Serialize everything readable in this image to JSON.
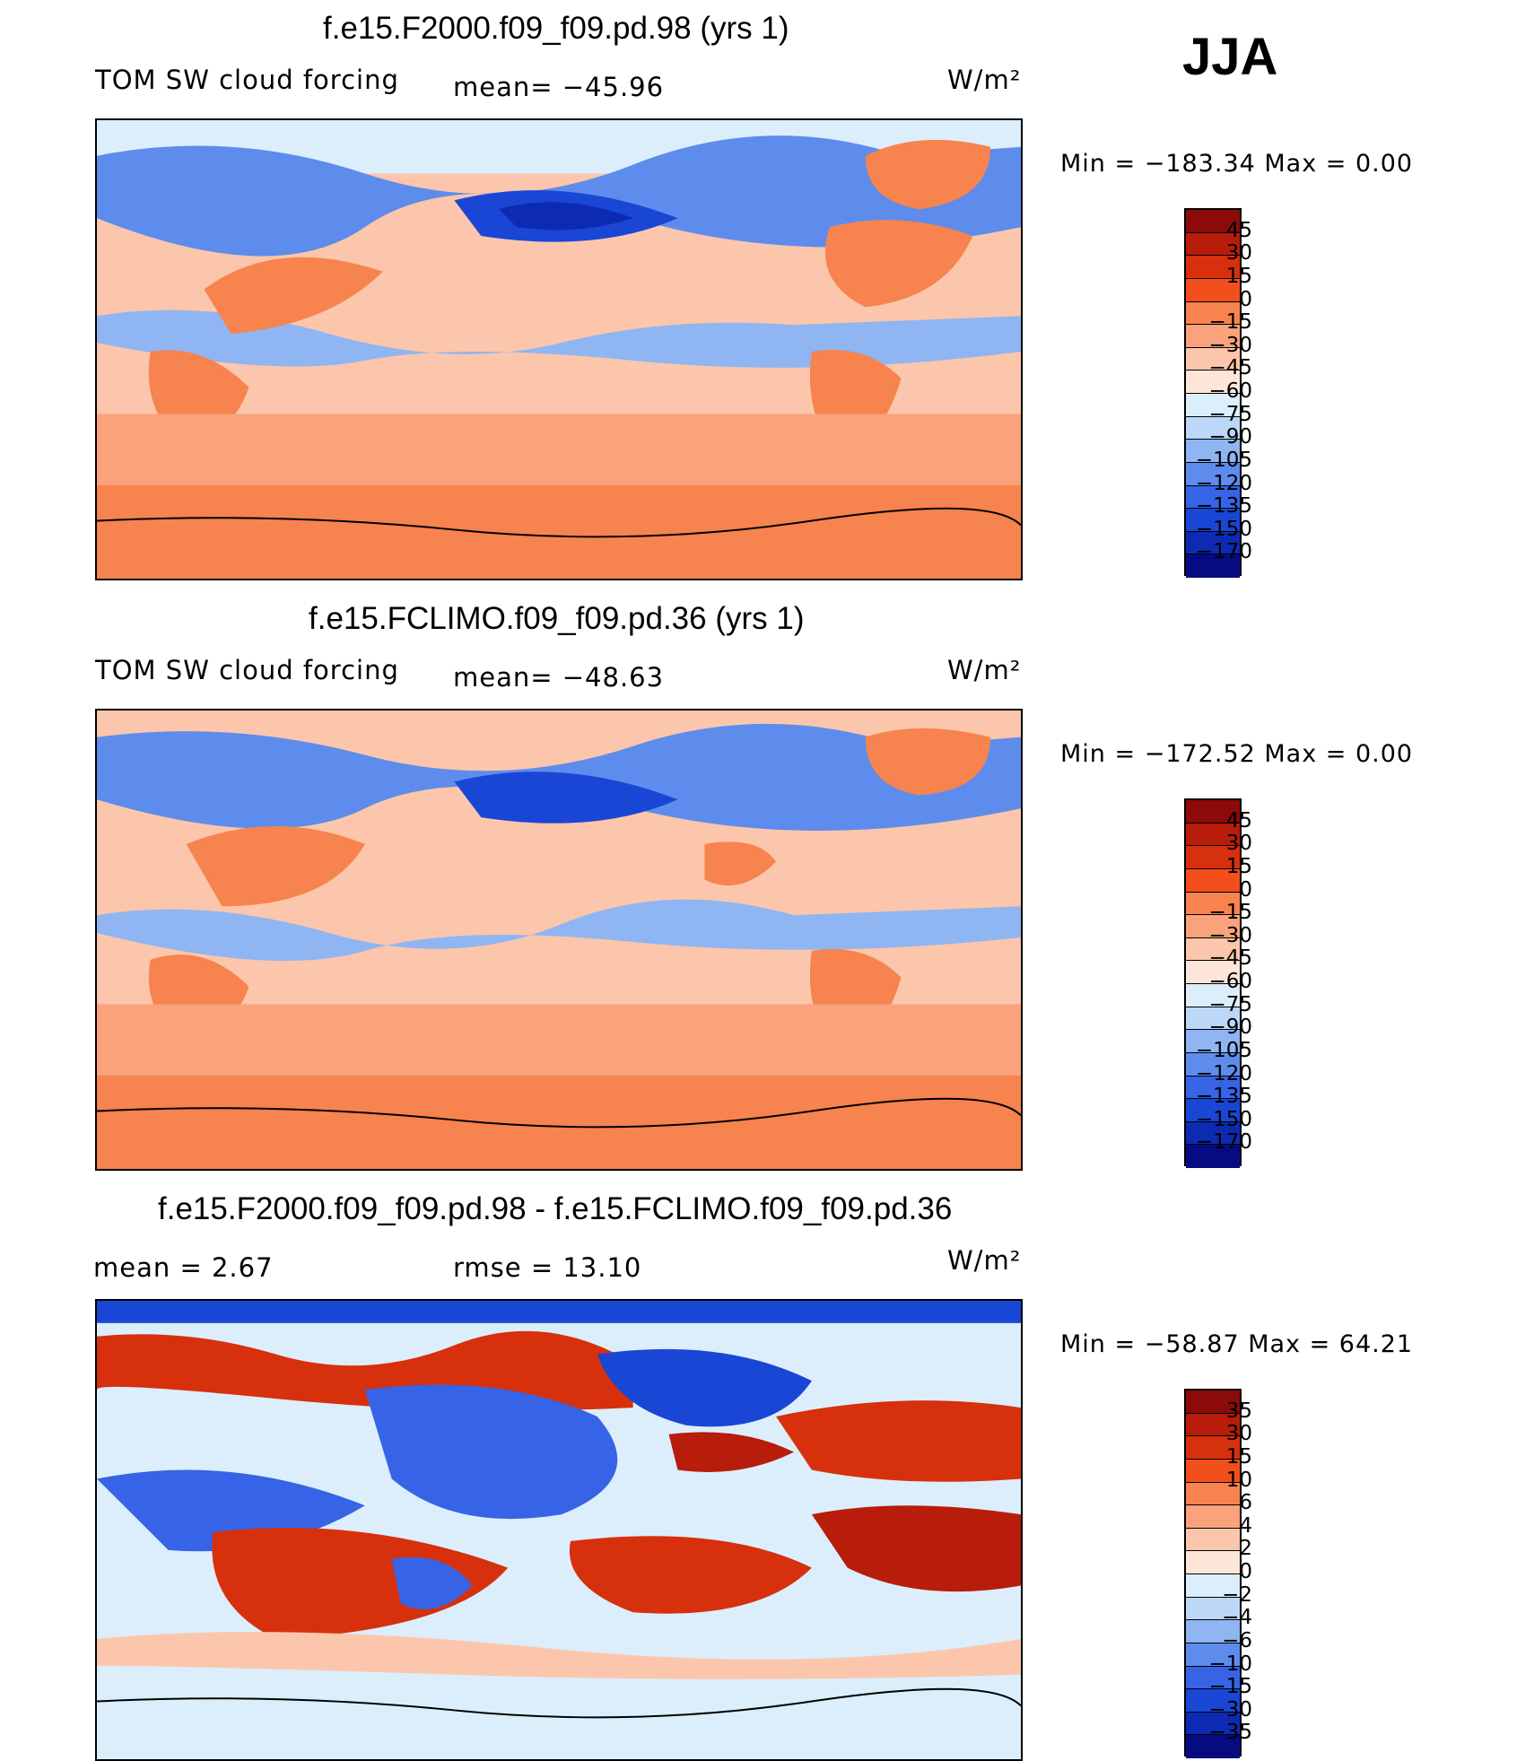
{
  "season": "JJA",
  "units": "W/m²",
  "chart_data": [
    {
      "type": "heatmap",
      "title": "f.e15.F2000.f09_f09.pd.98 (yrs 1)",
      "left_label": "TOM SW cloud forcing",
      "stat_text": "mean=  −45.96",
      "units": "W/m²",
      "min_max": "Min  =  −183.34  Max  =      0.00",
      "colorbar_levels": [
        "45",
        "30",
        "15",
        "0",
        "−15",
        "−30",
        "−45",
        "−60",
        "−75",
        "−90",
        "−105",
        "−120",
        "−135",
        "−150",
        "−170"
      ],
      "colorbar_colors": [
        "#8c0a0a",
        "#b81c0a",
        "#d7300d",
        "#f24f1c",
        "#f7834e",
        "#f9a27c",
        "#fbc6ab",
        "#fde6d9",
        "#dceefb",
        "#bcd7f8",
        "#8fb5f2",
        "#5d8cec",
        "#3764e6",
        "#1a46d6",
        "#0c2bb2",
        "#060b82"
      ]
    },
    {
      "type": "heatmap",
      "title": "f.e15.FCLIMO.f09_f09.pd.36 (yrs 1)",
      "left_label": "TOM SW cloud forcing",
      "stat_text": "mean=  −48.63",
      "units": "W/m²",
      "min_max": "Min  =  −172.52  Max  =      0.00",
      "colorbar_levels": [
        "45",
        "30",
        "15",
        "0",
        "−15",
        "−30",
        "−45",
        "−60",
        "−75",
        "−90",
        "−105",
        "−120",
        "−135",
        "−150",
        "−170"
      ],
      "colorbar_colors": [
        "#8c0a0a",
        "#b81c0a",
        "#d7300d",
        "#f24f1c",
        "#f7834e",
        "#f9a27c",
        "#fbc6ab",
        "#fde6d9",
        "#dceefb",
        "#bcd7f8",
        "#8fb5f2",
        "#5d8cec",
        "#3764e6",
        "#1a46d6",
        "#0c2bb2",
        "#060b82"
      ]
    },
    {
      "type": "heatmap",
      "title": "f.e15.F2000.f09_f09.pd.98 - f.e15.FCLIMO.f09_f09.pd.36",
      "left_label": "mean  =     2.67",
      "stat_text": "rmse  =    13.10",
      "units": "W/m²",
      "min_max": "Min  =  −58.87  Max  =    64.21",
      "colorbar_levels": [
        "35",
        "30",
        "15",
        "10",
        "6",
        "4",
        "2",
        "0",
        "−2",
        "−4",
        "−6",
        "−10",
        "−15",
        "−30",
        "−35"
      ],
      "colorbar_colors": [
        "#8c0a0a",
        "#b81c0a",
        "#d7300d",
        "#f24f1c",
        "#f7834e",
        "#f9a27c",
        "#fbc6ab",
        "#fde6d9",
        "#dceefb",
        "#bcd7f8",
        "#8fb5f2",
        "#5d8cec",
        "#3764e6",
        "#1a46d6",
        "#0c2bb2",
        "#060b82"
      ]
    }
  ]
}
